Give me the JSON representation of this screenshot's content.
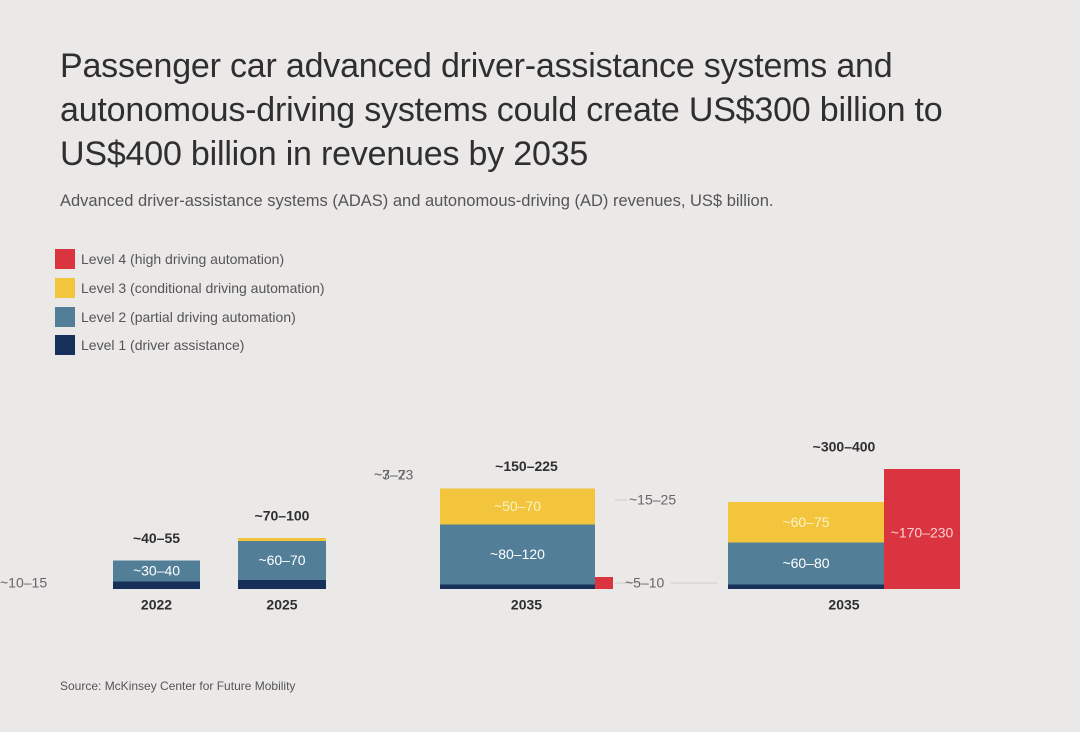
{
  "title": "Passenger car advanced driver-assistance systems and autonomous-driving systems could create US$300 billion to US$400 billion in revenues by 2035",
  "subtitle": "Advanced driver-assistance systems (ADAS) and autonomous-driving (AD) revenues, US$ billion.",
  "source": "Source: McKinsey Center for Future Mobility",
  "colors": {
    "level4": "#d9343f",
    "level3": "#f2c53d",
    "level2": "#527f97",
    "level1": "#17305a",
    "background": "#ebe8e8"
  },
  "legend": [
    {
      "label": "Level 4 (high driving automation)",
      "color": "#d9343f"
    },
    {
      "label": "Level 3 (conditional driving automation)",
      "color": "#f2c53d"
    },
    {
      "label": "Level 2 (partial driving automation)",
      "color": "#527f97"
    },
    {
      "label": "Level 1 (driver assistance)",
      "color": "#17305a"
    }
  ],
  "chart_data": {
    "type": "bar",
    "stacked": true,
    "title": "Passenger car advanced driver-assistance systems and autonomous-driving systems could create US$300 billion to US$400 billion in revenues by 2035",
    "subtitle": "Advanced driver-assistance systems (ADAS) and autonomous-driving (AD) revenues, US$ billion.",
    "legend_position": "top-left",
    "grid": false,
    "categories": [
      "2022",
      "2025",
      "2035",
      "2035"
    ],
    "totals": [
      "~40–55",
      "~70–100",
      "~150–225",
      "~300–400"
    ],
    "series": [
      {
        "name": "Level 1 (driver assistance)",
        "labels": [
          "~10–15",
          "~7–23",
          "~5–10",
          ""
        ],
        "values": [
          12.5,
          15,
          7.5,
          7.5
        ]
      },
      {
        "name": "Level 2 (partial driving automation)",
        "labels": [
          "~30–40",
          "~60–70",
          "~80–120",
          "~60–80"
        ],
        "values": [
          35,
          65,
          100,
          70
        ]
      },
      {
        "name": "Level 3 (conditional driving automation)",
        "labels": [
          "",
          "~3–7",
          "~50–70",
          "~60–75"
        ],
        "values": [
          0,
          5,
          60,
          67.5
        ]
      },
      {
        "name": "Level 4 (high driving automation)",
        "labels": [
          "",
          "",
          "~15–25",
          "~170–230"
        ],
        "values": [
          0,
          0,
          20,
          200
        ]
      }
    ]
  }
}
